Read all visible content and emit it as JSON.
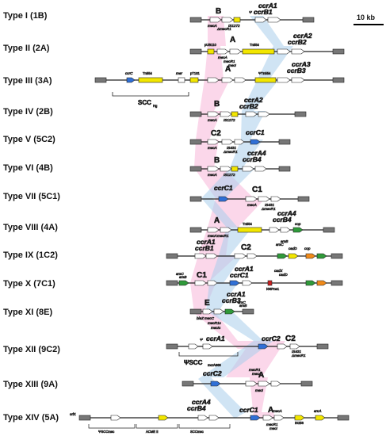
{
  "scale_label": "10 kb",
  "colors": {
    "pink": "#f7b6d8",
    "blue": "#a9cdeb",
    "yellow": "#f2e600",
    "gene_blue": "#2f6fd6",
    "orange": "#f08a1a",
    "red": "#cc1f1f",
    "gray": "#777777",
    "green": "#2f9a3a"
  },
  "types": [
    {
      "label": "Type I (1B)",
      "ccr": [
        "ccrA1",
        "ccrB1"
      ],
      "class": "B",
      "notes": [
        "mecA",
        "ΔmecR1",
        "IS1272",
        "Ψ"
      ]
    },
    {
      "label": "Type II (2A)",
      "ccr": [
        "ccrA2",
        "ccrB2"
      ],
      "class": "A",
      "notes": [
        "pUB110",
        "Tn554",
        "mecA",
        "mecR1",
        "mecI"
      ]
    },
    {
      "label": "Type III (3A)",
      "ccr": [
        "ccrA3",
        "ccrB3"
      ],
      "class": "A",
      "notes": [
        "ccrC",
        "Tn554",
        "pT181",
        "mer",
        "ΨTn554",
        "SCC",
        "Hg"
      ]
    },
    {
      "label": "Type IV (2B)",
      "ccr": [
        "ccrA2",
        "ccrB2"
      ],
      "class": "B",
      "notes": [
        "mecA",
        "IS1272"
      ]
    },
    {
      "label": "Type V (5C2)",
      "ccr": [
        "ccrC1"
      ],
      "class": "C2",
      "notes": [
        "mecA",
        "IS431",
        "ΔmecR1"
      ]
    },
    {
      "label": "Type VI (4B)",
      "ccr": [
        "ccrA4",
        "ccrB4"
      ],
      "class": "B",
      "notes": [
        "mecA",
        "IS1272"
      ]
    },
    {
      "label": "Type VII (5C1)",
      "ccr": [
        "ccrC1"
      ],
      "class": "C1",
      "notes": [
        "mecA",
        "IS431",
        "ΔmecR1"
      ]
    },
    {
      "label": "Type VIII (4A)",
      "ccr": [
        "ccrA4",
        "ccrB4"
      ],
      "class": "A",
      "notes": [
        "Tn554",
        "mecR1",
        "mecA",
        "cop"
      ]
    },
    {
      "label": "Type IX (1C2)",
      "ccr": [
        "ccrA1",
        "ccrB1"
      ],
      "class": "C2",
      "notes": [
        "arsC",
        "arsB",
        "cadD",
        "cop"
      ]
    },
    {
      "label": "Type X (7C1)",
      "ccr": [
        "ccrA1",
        "ccrC1"
      ],
      "class": "C1",
      "notes": [
        "arsC",
        "arsB",
        "cadX",
        "cadD",
        "IS6Pne1"
      ]
    },
    {
      "label": "Type XI (8E)",
      "ccr": [
        "ccrA1",
        "ccrB3"
      ],
      "class": "E",
      "notes": [
        "mecC",
        "mecR1c",
        "mecIc",
        "blaZ",
        "arsC",
        "arsB"
      ]
    },
    {
      "label": "Type XII (9C2)",
      "ccr": [
        "ccrA1",
        "ccrC2"
      ],
      "class": "C2",
      "notes": [
        "Ψ",
        "ΔmecR1",
        "IS431",
        "ΨSCC",
        "mcrA666"
      ]
    },
    {
      "label": "Type XIII (9A)",
      "ccr": [
        "ccrC2"
      ],
      "class": "A",
      "notes": [
        "mecR1",
        "mecA",
        "mecI"
      ]
    },
    {
      "label": "Type XIV (5A)",
      "ccr": [
        "ccrA4",
        "ccrB4",
        "ccrC1"
      ],
      "class": "A",
      "notes": [
        "orfX",
        "ΨSCCmec",
        "ACME II",
        "SCCmec",
        "IS256",
        "mecR1",
        "mecI",
        "mecA",
        "arcA"
      ]
    }
  ]
}
